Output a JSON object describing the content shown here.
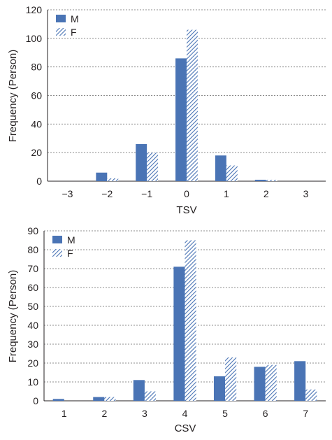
{
  "colors": {
    "male": "#4a74b5",
    "female_hatch": "#4a74b5",
    "female_bg": "#ffffff",
    "grid": "#8c8c8c",
    "axis": "#231f20"
  },
  "chart_data": [
    {
      "type": "bar",
      "grid": "dotted horizontal",
      "legend_placement": "top-left",
      "xlabel": "TSV",
      "ylabel": "Frequency (Person)",
      "ylim": [
        0,
        120
      ],
      "yticks": [
        "0",
        "20",
        "40",
        "60",
        "80",
        "100",
        "120"
      ],
      "categories": [
        "−3",
        "−2",
        "−1",
        "0",
        "1",
        "2",
        "3"
      ],
      "series": [
        {
          "name": "M",
          "pattern": "solid",
          "values": [
            0,
            6,
            26,
            86,
            18,
            1,
            0
          ]
        },
        {
          "name": "F",
          "pattern": "hatched",
          "values": [
            0,
            2,
            20,
            106,
            11,
            1,
            0
          ]
        }
      ]
    },
    {
      "type": "bar",
      "grid": "dotted horizontal",
      "legend_placement": "top-left",
      "xlabel": "CSV",
      "ylabel": "Frequency (Person)",
      "ylim": [
        0,
        90
      ],
      "yticks": [
        "0",
        "10",
        "20",
        "30",
        "40",
        "50",
        "60",
        "70",
        "80",
        "90"
      ],
      "categories": [
        "1",
        "2",
        "3",
        "4",
        "5",
        "6",
        "7"
      ],
      "series": [
        {
          "name": "M",
          "pattern": "solid",
          "values": [
            1,
            2,
            11,
            71,
            13,
            18,
            21
          ]
        },
        {
          "name": "F",
          "pattern": "hatched",
          "values": [
            0,
            2,
            5,
            85,
            23,
            19,
            6
          ]
        }
      ]
    }
  ]
}
